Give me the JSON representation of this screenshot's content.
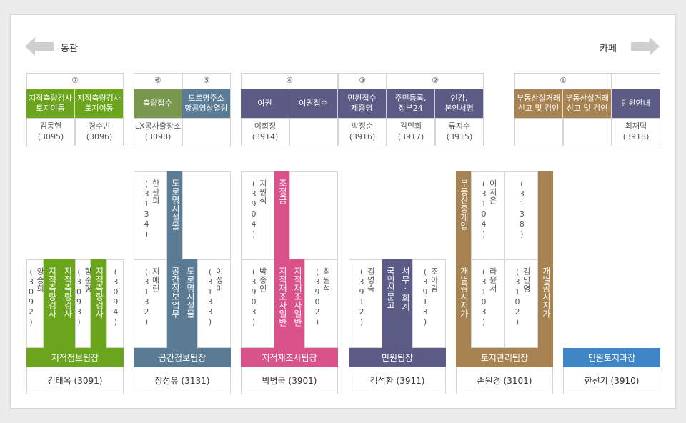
{
  "nav": {
    "left_label": "동관",
    "right_label": "카페"
  },
  "counters": [
    {
      "num": "⑦",
      "color": "#6aa51d",
      "items": [
        {
          "title": "지적측량검사\n토지이동",
          "staff": "김동현\n(3095)"
        },
        {
          "title": "지적측량검사\n토지이동",
          "staff": "경수빈\n(3096)"
        }
      ]
    },
    {
      "num": "⑥",
      "color": "#7a9750",
      "items": [
        {
          "title": "측량접수",
          "staff": "LX공사출장소\n(3098)"
        }
      ]
    },
    {
      "num": "⑤",
      "color": "#5b7b94",
      "items": [
        {
          "title": "도로명주소\n항공영상열람",
          "staff": ""
        }
      ]
    },
    {
      "num": "④",
      "color": "#5b5b86",
      "items": [
        {
          "title": "여권",
          "staff": "이희정\n(3914)"
        },
        {
          "title": "여권접수",
          "staff": ""
        }
      ]
    },
    {
      "num": "③",
      "color": "#5b5b86",
      "items": [
        {
          "title": "민원접수\n제증명",
          "staff": "박정순\n(3916)"
        }
      ]
    },
    {
      "num": "②",
      "color": "#5b5b86",
      "items": [
        {
          "title": "주민등록,\n정부24",
          "staff": "김민희\n(3917)"
        },
        {
          "title": "인감,\n본인서명",
          "staff": "류지수\n(3915)"
        }
      ]
    },
    {
      "num": "①",
      "color": "#a78352",
      "items": [
        {
          "title": "부동산실거래\n신고 및 검인",
          "staff": ""
        },
        {
          "title": "부동산실거래\n신고 및 검인",
          "staff": ""
        }
      ]
    },
    {
      "num": "",
      "color": "#5b5b86",
      "items": [
        {
          "title": "민원안내",
          "staff": "최재덕\n(3918)"
        }
      ]
    }
  ],
  "teams": [
    {
      "name": "지적정보팀장",
      "head": "김태옥 (3091)",
      "color": "#6aa51d"
    },
    {
      "name": "공간정보팀장",
      "head": "장성유 (3131)",
      "color": "#5b7b94"
    },
    {
      "name": "지적재조사팀장",
      "head": "박병국 (3901)",
      "color": "#d9528a"
    },
    {
      "name": "민원팀장",
      "head": "김석환 (3911)",
      "color": "#5b5b86"
    },
    {
      "name": "토지관리팀장",
      "head": "손원경 (3101)",
      "color": "#a78352"
    },
    {
      "name": "민원토지과장",
      "head": "한선기 (3910)",
      "color": "#3f86c6"
    }
  ],
  "desks": {
    "t1": [
      "양승희\n(3092)",
      "지적측량검사",
      "지적측량검사",
      "함준형\n(3093)",
      "지적측량검사",
      "(3094)"
    ],
    "t2_top": [
      "한관희\n(3134)",
      "도로명시설물"
    ],
    "t2_bot": [
      "지예린\n(3132)",
      "공간정보업무",
      "도로명시설물",
      "이성미\n(3133)"
    ],
    "t3_top": [
      "지원식\n(3904)",
      "조정금"
    ],
    "t3_bot": [
      "박종인\n(3903)",
      "지적재조사일반",
      "지적재조사일반",
      "최원석\n(3902)"
    ],
    "t4": [
      "김영숙\n(3912)",
      "국민신문고",
      "서무·회계",
      "조아람\n(3913)"
    ],
    "t5_top": [
      "부동산중개업",
      "이지은\n(3104)",
      "(3138)"
    ],
    "t5_bot": [
      "개별공시지가",
      "라윤서\n(3103)",
      "김민영\n(3102)",
      "개별공시지가"
    ]
  }
}
